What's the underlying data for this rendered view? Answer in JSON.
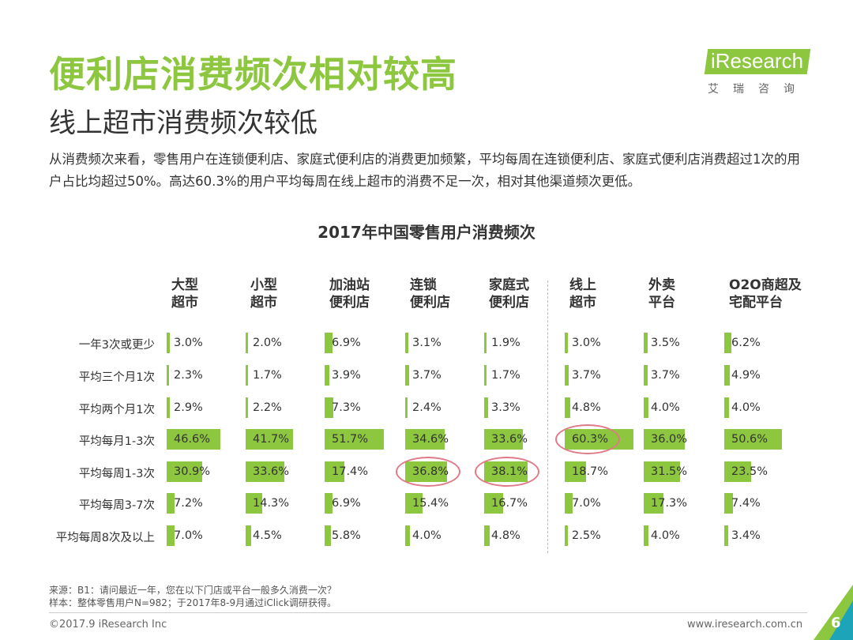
{
  "header": {
    "title": "便利店消费频次相对较高",
    "subtitle": "线上超市消费频次较低",
    "description": "从消费频次来看，零售用户在连锁便利店、家庭式便利店的消费更加频繁，平均每周在连锁便利店、家庭式便利店消费超过1次的用户占比均超过50%。高达60.3%的用户平均每周在线上超市的消费不足一次，相对其他渠道频次更低。"
  },
  "logo": {
    "main": "iResearch",
    "sub": "艾瑞咨询"
  },
  "chart_data": {
    "type": "table",
    "title": "2017年中国零售用户消费频次",
    "columns": [
      [
        "大型",
        "超市"
      ],
      [
        "小型",
        "超市"
      ],
      [
        "加油站",
        "便利店"
      ],
      [
        "连锁",
        "便利店"
      ],
      [
        "家庭式",
        "便利店"
      ],
      [
        "线上",
        "超市"
      ],
      [
        "外卖",
        "平台"
      ],
      [
        "O2O商超及",
        "宅配平台"
      ]
    ],
    "rows": [
      "一年3次或更少",
      "平均三个月1次",
      "平均两个月1次",
      "平均每月1-3次",
      "平均每周1-3次",
      "平均每周3-7次",
      "平均每周8次及以上"
    ],
    "values": [
      [
        3.0,
        2.0,
        6.9,
        3.1,
        1.9,
        3.0,
        3.5,
        6.2
      ],
      [
        2.3,
        1.7,
        3.9,
        3.7,
        1.7,
        3.7,
        3.7,
        4.9
      ],
      [
        2.9,
        2.2,
        7.3,
        2.4,
        3.3,
        4.8,
        4.0,
        4.0
      ],
      [
        46.6,
        41.7,
        51.7,
        34.6,
        33.6,
        60.3,
        36.0,
        50.6
      ],
      [
        30.9,
        33.6,
        17.4,
        36.8,
        38.1,
        18.7,
        31.5,
        23.5
      ],
      [
        7.2,
        14.3,
        6.9,
        15.4,
        16.7,
        7.0,
        17.3,
        7.4
      ],
      [
        7.0,
        4.5,
        5.8,
        4.0,
        4.8,
        2.5,
        4.0,
        3.4
      ]
    ],
    "unit": "%",
    "highlighted": [
      [
        3,
        5
      ],
      [
        4,
        3
      ],
      [
        4,
        4
      ]
    ],
    "bar_color": "#8dc63f",
    "highlight_color": "#e07a86"
  },
  "footnotes": {
    "source": "来源：B1：请问最近一年，您在以下门店或平台一般多久消费一次？",
    "sample": "样本：整体零售用户N=982；于2017年8-9月通过iClick调研获得。"
  },
  "footer": {
    "copyright": "©2017.9 iResearch Inc",
    "site": "www.iresearch.com.cn",
    "page": "6"
  }
}
